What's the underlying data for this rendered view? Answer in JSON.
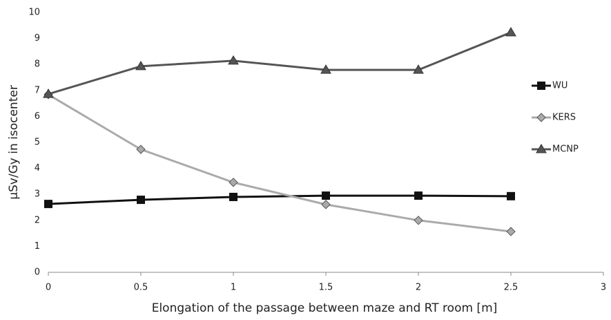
{
  "chart_data": {
    "type": "line",
    "x_label": "Elongation of the passage between maze and RT room [m]",
    "y_label": "µSv/Gy in isocenter",
    "x": [
      0,
      0.5,
      1,
      1.5,
      2,
      2.5
    ],
    "series": [
      {
        "name": "WU",
        "color": "#111111",
        "marker": "square",
        "values": [
          2.63,
          2.79,
          2.9,
          2.95,
          2.95,
          2.93
        ]
      },
      {
        "name": "KERS",
        "color": "#aaaaaa",
        "marker": "diamond",
        "values": [
          6.84,
          4.73,
          3.46,
          2.61,
          2.0,
          1.57
        ]
      },
      {
        "name": "MCNP",
        "color": "#555555",
        "marker": "triangle",
        "values": [
          6.86,
          7.93,
          8.14,
          7.79,
          7.79,
          9.23
        ]
      }
    ],
    "xlim": [
      0,
      3
    ],
    "xticks": [
      0,
      0.5,
      1,
      1.5,
      2,
      2.5,
      3
    ],
    "ylim": [
      0,
      10
    ],
    "yticks": [
      0,
      1,
      2,
      3,
      4,
      5,
      6,
      7,
      8,
      9,
      10
    ],
    "grid": false,
    "legend": "right"
  }
}
